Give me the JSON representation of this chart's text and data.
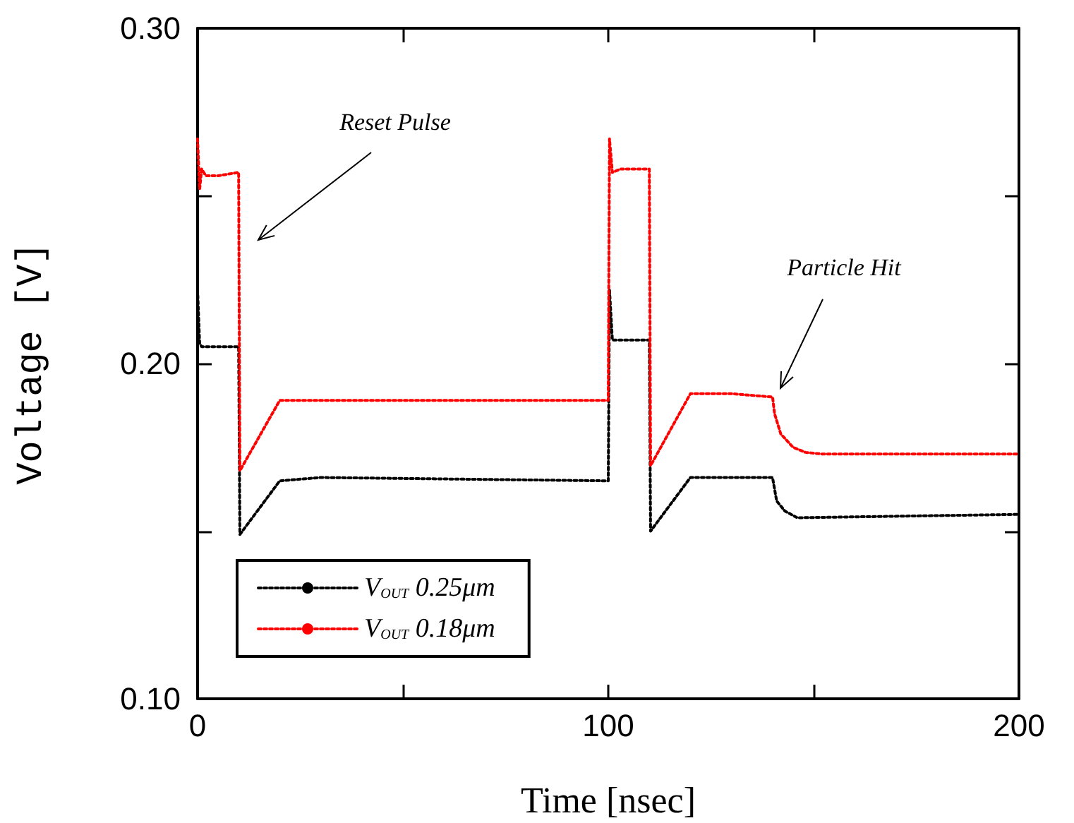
{
  "chart_data": {
    "type": "line",
    "xlabel": "Time [nsec]",
    "ylabel": "Voltage [V]",
    "xlim": [
      0,
      200
    ],
    "xticks": [
      0,
      {
        "value": 50,
        "label": null
      },
      100,
      {
        "value": 150,
        "label": null
      },
      200
    ],
    "ylim": [
      0.1,
      0.3
    ],
    "yticks": [
      {
        "value": 0.1,
        "label": "0.10"
      },
      {
        "value": 0.15,
        "label": null
      },
      {
        "value": 0.2,
        "label": "0.20"
      },
      {
        "value": 0.25,
        "label": null
      },
      {
        "value": 0.3,
        "label": "0.30"
      }
    ],
    "legend": "bottom left",
    "line_style": "dotted",
    "marker": "none",
    "grid": false,
    "annotations": [
      "Reset Pulse",
      "Particle Hit"
    ],
    "series": [
      {
        "name": "V$_{OUT}$ 0.25μm",
        "color": "#000000",
        "x": [
          0,
          0.5,
          1,
          10,
          10.3,
          20,
          30,
          100,
          100.3,
          101,
          110,
          110.3,
          120,
          140,
          141,
          143,
          146,
          200
        ],
        "values": [
          0.222,
          0.206,
          0.205,
          0.205,
          0.149,
          0.165,
          0.166,
          0.165,
          0.222,
          0.207,
          0.207,
          0.15,
          0.166,
          0.166,
          0.159,
          0.156,
          0.154,
          0.155
        ]
      },
      {
        "name": "V$_{OUT}$ 0.18μm",
        "color": "#ff0000",
        "x": [
          0,
          0.5,
          1,
          2,
          5,
          10,
          10.3,
          20,
          30,
          100,
          100.3,
          101,
          103,
          110,
          110.3,
          120,
          130,
          140,
          140.5,
          142,
          145,
          148,
          152,
          200
        ],
        "values": [
          0.267,
          0.252,
          0.258,
          0.256,
          0.256,
          0.257,
          0.168,
          0.189,
          0.189,
          0.189,
          0.267,
          0.257,
          0.258,
          0.258,
          0.1695,
          0.191,
          0.191,
          0.19,
          0.185,
          0.179,
          0.175,
          0.1735,
          0.173,
          0.173
        ]
      }
    ]
  }
}
